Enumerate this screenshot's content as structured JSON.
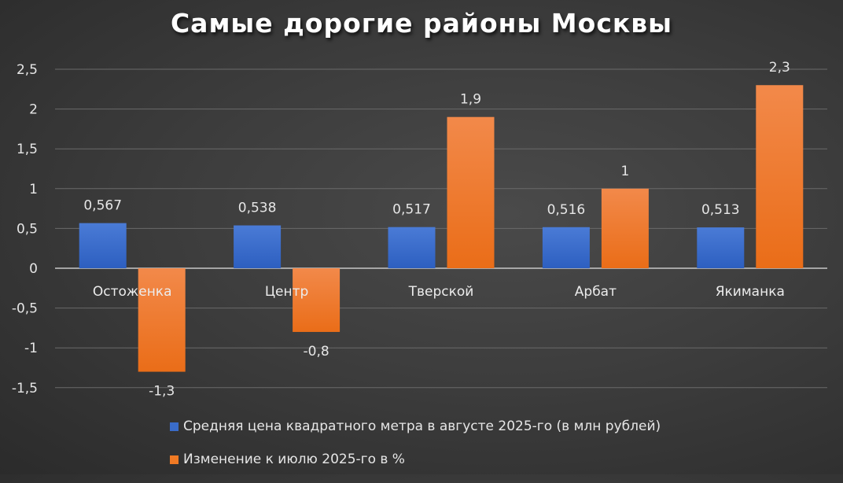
{
  "title": "Самые дорогие районы Москвы",
  "colors": {
    "price": "#3a6cc9",
    "change": "#f07a24",
    "background": "#3d3d3d"
  },
  "legend": [
    {
      "label": "Средняя цена квадратного метра в августе 2025-го (в млн рублей)",
      "color": "#3a6cc9"
    },
    {
      "label": "Изменение к июлю 2025-го в %",
      "color": "#f07a24"
    }
  ],
  "chart_data": {
    "type": "bar",
    "title": "Самые дорогие районы Москвы",
    "categories": [
      "Остоженка",
      "Центр",
      "Тверской",
      "Арбат",
      "Якиманка"
    ],
    "series": [
      {
        "name": "Средняя цена квадратного метра в августе 2025-го (в млн рублей)",
        "values": [
          0.567,
          0.538,
          0.517,
          0.516,
          0.513
        ],
        "labels": [
          "0,567",
          "0,538",
          "0,517",
          "0,516",
          "0,513"
        ]
      },
      {
        "name": "Изменение к июлю 2025-го в %",
        "values": [
          -1.3,
          -0.8,
          1.9,
          1.0,
          2.3
        ],
        "labels": [
          "-1,3",
          "-0,8",
          "1,9",
          "1",
          "2,3"
        ]
      }
    ],
    "yticks": [
      "2,5",
      "2",
      "1,5",
      "1",
      "0,5",
      "0",
      "-0,5",
      "-1",
      "-1,5"
    ],
    "ytick_values": [
      2.5,
      2,
      1.5,
      1,
      0.5,
      0,
      -0.5,
      -1,
      -1.5
    ],
    "ylim": [
      -1.5,
      2.5
    ],
    "xlabel": "",
    "ylabel": "",
    "grid": true,
    "legend_position": "bottom"
  }
}
